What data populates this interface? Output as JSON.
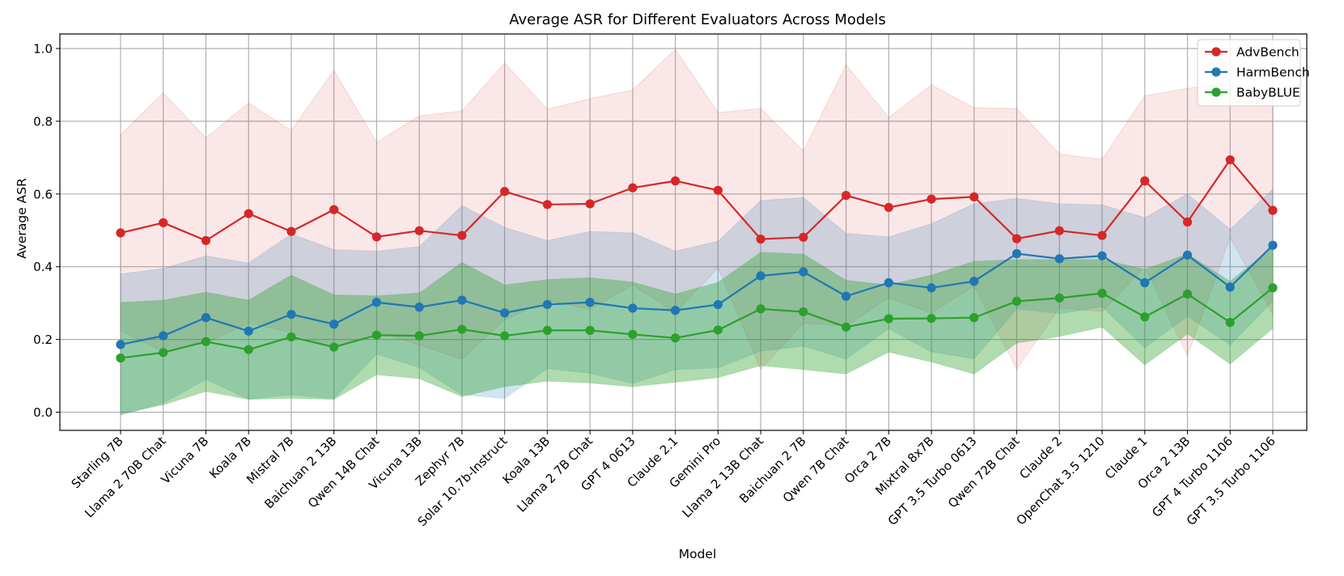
{
  "chart_data": {
    "type": "line",
    "title": "Average ASR for Different Evaluators Across Models",
    "xlabel": "Model",
    "ylabel": "Average ASR",
    "ylim": [
      -0.05,
      1.04
    ],
    "yticks": [
      0.0,
      0.2,
      0.4,
      0.6,
      0.8,
      1.0
    ],
    "ytick_labels": [
      "0.0",
      "0.2",
      "0.4",
      "0.6",
      "0.8",
      "1.0"
    ],
    "grid": true,
    "legend_position": "top-right",
    "categories": [
      "Starling 7B",
      "Llama 2 70B Chat",
      "Vicuna 7B",
      "Koala 7B",
      "Mistral 7B",
      "Baichuan 2 13B",
      "Qwen 14B Chat",
      "Vicuna 13B",
      "Zephyr 7B",
      "Solar 10.7b-Instruct",
      "Koala 13B",
      "Llama 2 7B Chat",
      "GPT 4 0613",
      "Claude 2.1",
      "Gemini Pro",
      "Llama 2 13B Chat",
      "Baichuan 2 7B",
      "Qwen 7B Chat",
      "Orca 2 7B",
      "Mixtral 8x7B",
      "GPT 3.5 Turbo 0613",
      "Qwen 72B Chat",
      "Claude 2",
      "OpenChat 3.5 1210",
      "Claude 1",
      "Orca 2 13B",
      "GPT 4 Turbo 1106",
      "GPT 3.5 Turbo 1106"
    ],
    "series": [
      {
        "name": "AdvBench",
        "color": "#d62728",
        "values": [
          0.493,
          0.521,
          0.472,
          0.546,
          0.497,
          0.557,
          0.482,
          0.499,
          0.486,
          0.607,
          0.571,
          0.573,
          0.617,
          0.636,
          0.61,
          0.476,
          0.481,
          0.596,
          0.563,
          0.586,
          0.592,
          0.477,
          0.499,
          0.486,
          0.636,
          0.523,
          0.694,
          0.555
        ],
        "upper": [
          0.763,
          0.878,
          0.755,
          0.85,
          0.775,
          0.94,
          0.742,
          0.815,
          0.828,
          0.96,
          0.833,
          0.862,
          0.886,
          0.998,
          0.824,
          0.835,
          0.718,
          0.955,
          0.81,
          0.9,
          0.837,
          0.835,
          0.71,
          0.695,
          0.87,
          0.89,
          0.907,
          0.84
        ],
        "lower": [
          0.225,
          0.166,
          0.19,
          0.245,
          0.22,
          0.175,
          0.222,
          0.185,
          0.145,
          0.254,
          0.307,
          0.283,
          0.35,
          0.273,
          0.397,
          0.118,
          0.245,
          0.237,
          0.315,
          0.272,
          0.347,
          0.118,
          0.287,
          0.277,
          0.4,
          0.155,
          0.48,
          0.27
        ]
      },
      {
        "name": "HarmBench",
        "color": "#1f77b4",
        "values": [
          0.186,
          0.21,
          0.26,
          0.223,
          0.269,
          0.242,
          0.302,
          0.289,
          0.308,
          0.273,
          0.296,
          0.302,
          0.286,
          0.28,
          0.296,
          0.375,
          0.386,
          0.319,
          0.356,
          0.342,
          0.36,
          0.436,
          0.422,
          0.43,
          0.356,
          0.432,
          0.344,
          0.459
        ],
        "upper": [
          0.38,
          0.395,
          0.43,
          0.41,
          0.49,
          0.447,
          0.443,
          0.455,
          0.568,
          0.508,
          0.472,
          0.497,
          0.493,
          0.443,
          0.47,
          0.582,
          0.59,
          0.492,
          0.482,
          0.518,
          0.573,
          0.588,
          0.573,
          0.57,
          0.535,
          0.6,
          0.503,
          0.613
        ],
        "lower": [
          -0.008,
          0.025,
          0.09,
          0.036,
          0.048,
          0.037,
          0.16,
          0.123,
          0.048,
          0.038,
          0.12,
          0.107,
          0.079,
          0.117,
          0.122,
          0.168,
          0.182,
          0.146,
          0.23,
          0.166,
          0.147,
          0.284,
          0.271,
          0.29,
          0.177,
          0.264,
          0.185,
          0.305
        ]
      },
      {
        "name": "BabyBLUE",
        "color": "#2ca02c",
        "values": [
          0.149,
          0.164,
          0.194,
          0.172,
          0.207,
          0.179,
          0.212,
          0.21,
          0.228,
          0.21,
          0.225,
          0.225,
          0.214,
          0.204,
          0.226,
          0.284,
          0.276,
          0.234,
          0.257,
          0.258,
          0.26,
          0.305,
          0.314,
          0.327,
          0.262,
          0.325,
          0.247,
          0.342
        ],
        "upper": [
          0.302,
          0.308,
          0.33,
          0.308,
          0.377,
          0.323,
          0.32,
          0.328,
          0.412,
          0.35,
          0.365,
          0.37,
          0.358,
          0.325,
          0.357,
          0.44,
          0.435,
          0.363,
          0.35,
          0.377,
          0.415,
          0.42,
          0.42,
          0.42,
          0.393,
          0.435,
          0.36,
          0.455
        ],
        "lower": [
          -0.005,
          0.02,
          0.057,
          0.035,
          0.038,
          0.035,
          0.103,
          0.092,
          0.043,
          0.07,
          0.085,
          0.08,
          0.07,
          0.082,
          0.095,
          0.128,
          0.117,
          0.105,
          0.165,
          0.138,
          0.105,
          0.19,
          0.208,
          0.234,
          0.13,
          0.215,
          0.132,
          0.23
        ]
      }
    ]
  }
}
